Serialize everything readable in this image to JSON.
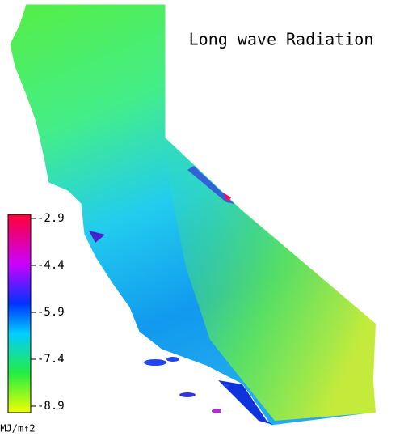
{
  "title": "Long wave Radiation",
  "colorbar": {
    "lim": [
      -8.9,
      -2.9
    ],
    "ticks": [
      -2.9,
      -4.4,
      -5.9,
      -7.4,
      -8.9
    ],
    "unit": "MJ/m↑2"
  }
}
